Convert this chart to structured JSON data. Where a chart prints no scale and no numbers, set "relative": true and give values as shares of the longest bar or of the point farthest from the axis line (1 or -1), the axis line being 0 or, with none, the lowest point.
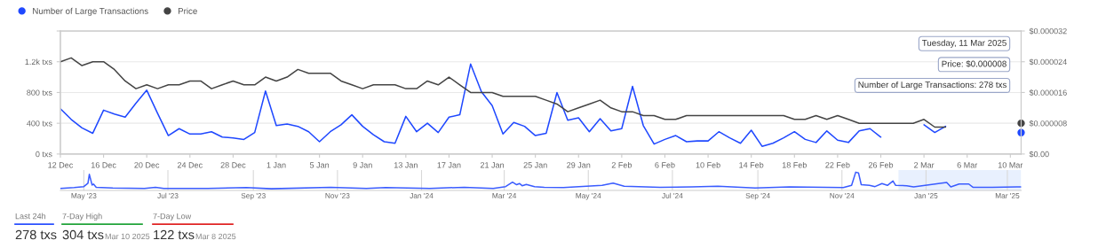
{
  "chart_data": [
    {
      "type": "line",
      "legend": "top left",
      "grid": "y",
      "x": [
        "2024-12-12",
        "2024-12-13",
        "2024-12-14",
        "2024-12-15",
        "2024-12-16",
        "2024-12-17",
        "2024-12-18",
        "2024-12-19",
        "2024-12-20",
        "2024-12-21",
        "2024-12-22",
        "2024-12-23",
        "2024-12-24",
        "2024-12-25",
        "2024-12-26",
        "2024-12-27",
        "2024-12-28",
        "2024-12-29",
        "2024-12-30",
        "2024-12-31",
        "2025-01-01",
        "2025-01-02",
        "2025-01-03",
        "2025-01-04",
        "2025-01-05",
        "2025-01-06",
        "2025-01-07",
        "2025-01-08",
        "2025-01-09",
        "2025-01-10",
        "2025-01-11",
        "2025-01-12",
        "2025-01-13",
        "2025-01-14",
        "2025-01-15",
        "2025-01-16",
        "2025-01-17",
        "2025-01-18",
        "2025-01-19",
        "2025-01-20",
        "2025-01-21",
        "2025-01-22",
        "2025-01-23",
        "2025-01-24",
        "2025-01-25",
        "2025-01-26",
        "2025-01-27",
        "2025-01-28",
        "2025-01-29",
        "2025-01-30",
        "2025-01-31",
        "2025-02-01",
        "2025-02-02",
        "2025-02-03",
        "2025-02-04",
        "2025-02-05",
        "2025-02-06",
        "2025-02-07",
        "2025-02-08",
        "2025-02-09",
        "2025-02-10",
        "2025-02-11",
        "2025-02-12",
        "2025-02-13",
        "2025-02-14",
        "2025-02-15",
        "2025-02-16",
        "2025-02-17",
        "2025-02-18",
        "2025-02-19",
        "2025-02-20",
        "2025-02-21",
        "2025-02-22",
        "2025-02-23",
        "2025-02-24",
        "2025-02-25",
        "2025-02-26",
        "2025-02-27",
        "2025-02-28",
        "2025-03-01",
        "2025-03-02",
        "2025-03-03",
        "2025-03-04",
        "2025-03-05",
        "2025-03-06",
        "2025-03-07",
        "2025-03-08",
        "2025-03-09",
        "2025-03-10",
        "2025-03-11"
      ],
      "xlim": [
        "2024-12-12",
        "2025-03-11"
      ],
      "xticks": [
        {
          "value": "2024-12-12",
          "label": "12 Dec"
        },
        {
          "value": "2024-12-16",
          "label": "16 Dec"
        },
        {
          "value": "2024-12-20",
          "label": "20 Dec"
        },
        {
          "value": "2024-12-24",
          "label": "24 Dec"
        },
        {
          "value": "2024-12-28",
          "label": "28 Dec"
        },
        {
          "value": "2025-01-01",
          "label": "1 Jan"
        },
        {
          "value": "2025-01-05",
          "label": "5 Jan"
        },
        {
          "value": "2025-01-09",
          "label": "9 Jan"
        },
        {
          "value": "2025-01-13",
          "label": "13 Jan"
        },
        {
          "value": "2025-01-17",
          "label": "17 Jan"
        },
        {
          "value": "2025-01-21",
          "label": "21 Jan"
        },
        {
          "value": "2025-01-25",
          "label": "25 Jan"
        },
        {
          "value": "2025-01-29",
          "label": "29 Jan"
        },
        {
          "value": "2025-02-02",
          "label": "2 Feb"
        },
        {
          "value": "2025-02-06",
          "label": "6 Feb"
        },
        {
          "value": "2025-02-10",
          "label": "10 Feb"
        },
        {
          "value": "2025-02-14",
          "label": "14 Feb"
        },
        {
          "value": "2025-02-18",
          "label": "18 Feb"
        },
        {
          "value": "2025-02-22",
          "label": "22 Feb"
        },
        {
          "value": "2025-02-26",
          "label": "26 Feb"
        },
        {
          "value": "2025-03-02",
          "label": "2 Mar"
        },
        {
          "value": "2025-03-06",
          "label": "6 Mar"
        },
        {
          "value": "2025-03-10",
          "label": "10 Mar"
        }
      ],
      "ylim": [
        0,
        1600
      ],
      "yticks": [
        {
          "value": 0,
          "label": "0 txs"
        },
        {
          "value": 400,
          "label": "400 txs"
        },
        {
          "value": 800,
          "label": "800 txs"
        },
        {
          "value": 1200,
          "label": "1.2k txs"
        },
        {
          "value": 1600,
          "label": null
        }
      ],
      "y2lim": [
        0,
        3.2e-05
      ],
      "y2ticks": [
        {
          "value": 0,
          "label": "$0.00"
        },
        {
          "value": 8e-06,
          "label": "$0.000008"
        },
        {
          "value": 1.6e-05,
          "label": "$0.000016"
        },
        {
          "value": 2.4e-05,
          "label": "$0.000024"
        },
        {
          "value": 3.2e-05,
          "label": "$0.000032"
        }
      ],
      "series": [
        {
          "name": "Number of Large Transactions",
          "color": "#1f48ff",
          "values": [
            590,
            450,
            340,
            270,
            570,
            520,
            480,
            660,
            830,
            530,
            240,
            330,
            260,
            260,
            290,
            220,
            210,
            190,
            280,
            820,
            370,
            390,
            360,
            290,
            160,
            290,
            380,
            510,
            360,
            250,
            160,
            140,
            490,
            290,
            400,
            280,
            480,
            510,
            1170,
            810,
            630,
            260,
            410,
            360,
            240,
            270,
            800,
            440,
            470,
            290,
            460,
            300,
            330,
            880,
            370,
            130,
            190,
            240,
            160,
            170,
            170,
            290,
            210,
            140,
            310,
            100,
            140,
            210,
            290,
            190,
            150,
            300,
            180,
            150,
            300,
            330,
            220,
            null,
            null,
            null,
            380,
            280,
            360,
            null,
            null,
            null,
            null,
            null,
            null,
            278
          ]
        },
        {
          "name": "Price",
          "color": "#444444",
          "axis": "y2",
          "values": [
            2.4e-05,
            2.5e-05,
            2.3e-05,
            2.4e-05,
            2.4e-05,
            2.2e-05,
            1.9e-05,
            1.7e-05,
            1.8e-05,
            1.7e-05,
            1.8e-05,
            1.8e-05,
            1.9e-05,
            1.9e-05,
            1.7e-05,
            1.8e-05,
            1.9e-05,
            1.8e-05,
            1.8e-05,
            2e-05,
            1.9e-05,
            2e-05,
            2.2e-05,
            2.1e-05,
            2.1e-05,
            2.1e-05,
            1.9e-05,
            1.8e-05,
            1.7e-05,
            1.8e-05,
            1.8e-05,
            1.8e-05,
            1.7e-05,
            1.7e-05,
            1.9e-05,
            1.8e-05,
            2e-05,
            1.8e-05,
            1.6e-05,
            1.6e-05,
            1.6e-05,
            1.5e-05,
            1.5e-05,
            1.5e-05,
            1.5e-05,
            1.4e-05,
            1.3e-05,
            1.1e-05,
            1.2e-05,
            1.3e-05,
            1.4e-05,
            1.2e-05,
            1.1e-05,
            1.1e-05,
            1e-05,
            1e-05,
            9e-06,
            9e-06,
            1e-05,
            1e-05,
            1e-05,
            1e-05,
            1e-05,
            1e-05,
            1e-05,
            1e-05,
            1e-05,
            1e-05,
            9e-06,
            9e-06,
            1e-05,
            9e-06,
            1e-05,
            9e-06,
            8e-06,
            8e-06,
            8e-06,
            8e-06,
            8e-06,
            8e-06,
            9e-06,
            7e-06,
            7e-06,
            null,
            null,
            null,
            null,
            null,
            null,
            8e-06
          ]
        }
      ],
      "annotations": [
        "Tuesday, 11 Mar 2025",
        "Price: $0.000008",
        "Number of Large Transactions: 278 txs"
      ]
    },
    {
      "type": "line",
      "relative": true,
      "grid": "x",
      "x": [
        "2023-04-14",
        "2023-04-24",
        "2023-05-01",
        "2023-05-04",
        "2023-05-05",
        "2023-05-07",
        "2023-05-08",
        "2023-05-10",
        "2023-05-22",
        "2023-06-14",
        "2023-06-22",
        "2023-06-28",
        "2023-07-30",
        "2023-08-27",
        "2023-09-14",
        "2023-10-27",
        "2023-11-22",
        "2023-12-06",
        "2024-01-07",
        "2024-02-01",
        "2024-02-22",
        "2024-03-02",
        "2024-03-07",
        "2024-03-10",
        "2024-03-12",
        "2024-03-14",
        "2024-03-17",
        "2024-03-23",
        "2024-03-30",
        "2024-04-13",
        "2024-05-11",
        "2024-05-19",
        "2024-05-27",
        "2024-06-22",
        "2024-07-15",
        "2024-08-03",
        "2024-08-30",
        "2024-09-24",
        "2024-11-02",
        "2024-11-08",
        "2024-11-11",
        "2024-11-13",
        "2024-11-15",
        "2024-11-21",
        "2024-11-25",
        "2024-11-30",
        "2024-12-04",
        "2024-12-08",
        "2024-12-10",
        "2024-12-18",
        "2024-12-23",
        "2025-01-16",
        "2025-01-19",
        "2025-01-25",
        "2025-02-01",
        "2025-02-04",
        "2025-02-18",
        "2025-03-08",
        "2025-03-11"
      ],
      "xlim": [
        "2023-04-14",
        "2025-03-11"
      ],
      "xticks": [
        {
          "value": "2023-05-01",
          "label": "May '23"
        },
        {
          "value": "2023-07-01",
          "label": "Jul '23"
        },
        {
          "value": "2023-09-01",
          "label": "Sep '23"
        },
        {
          "value": "2023-11-01",
          "label": "Nov '23"
        },
        {
          "value": "2024-01-01",
          "label": "Jan '24"
        },
        {
          "value": "2024-03-01",
          "label": "Mar '24"
        },
        {
          "value": "2024-05-01",
          "label": "May '24"
        },
        {
          "value": "2024-07-01",
          "label": "Jul '24"
        },
        {
          "value": "2024-09-01",
          "label": "Sep '24"
        },
        {
          "value": "2024-11-01",
          "label": "Nov '24"
        },
        {
          "value": "2025-01-01",
          "label": "Jan '25"
        },
        {
          "value": "2025-03-01",
          "label": "Mar '25"
        }
      ],
      "bands": [
        {
          "axis": "x",
          "from": "2024-12-12",
          "to": "2025-03-11",
          "color": "#e8f0fe"
        }
      ],
      "series": [
        {
          "color": "#3a5cff",
          "values": [
            0.04,
            0.09,
            0.15,
            0.35,
            0.87,
            0.24,
            0.3,
            0.11,
            0.07,
            0.04,
            0.11,
            0.04,
            0.04,
            0.09,
            0.02,
            0.11,
            0.04,
            0.09,
            0.04,
            0.11,
            0.04,
            0.15,
            0.41,
            0.26,
            0.33,
            0.2,
            0.28,
            0.15,
            0.11,
            0.09,
            0.22,
            0.35,
            0.17,
            0.11,
            0.13,
            0.17,
            0.07,
            0.13,
            0.09,
            0.22,
            1,
            0.96,
            0.26,
            0.22,
            0.15,
            0.33,
            0.22,
            0.48,
            0.22,
            0.2,
            0.13,
            0.39,
            0.13,
            0.3,
            0.3,
            0.11,
            0.11,
            0.13,
            0.13
          ]
        }
      ]
    },
    {
      "type": "other",
      "annotations": [
        "Last 24h",
        "278 txs",
        "7-Day High",
        "304 txs",
        "Mar 10 2025",
        "7-Day Low",
        "122 txs",
        "Mar 8 2025"
      ]
    }
  ]
}
